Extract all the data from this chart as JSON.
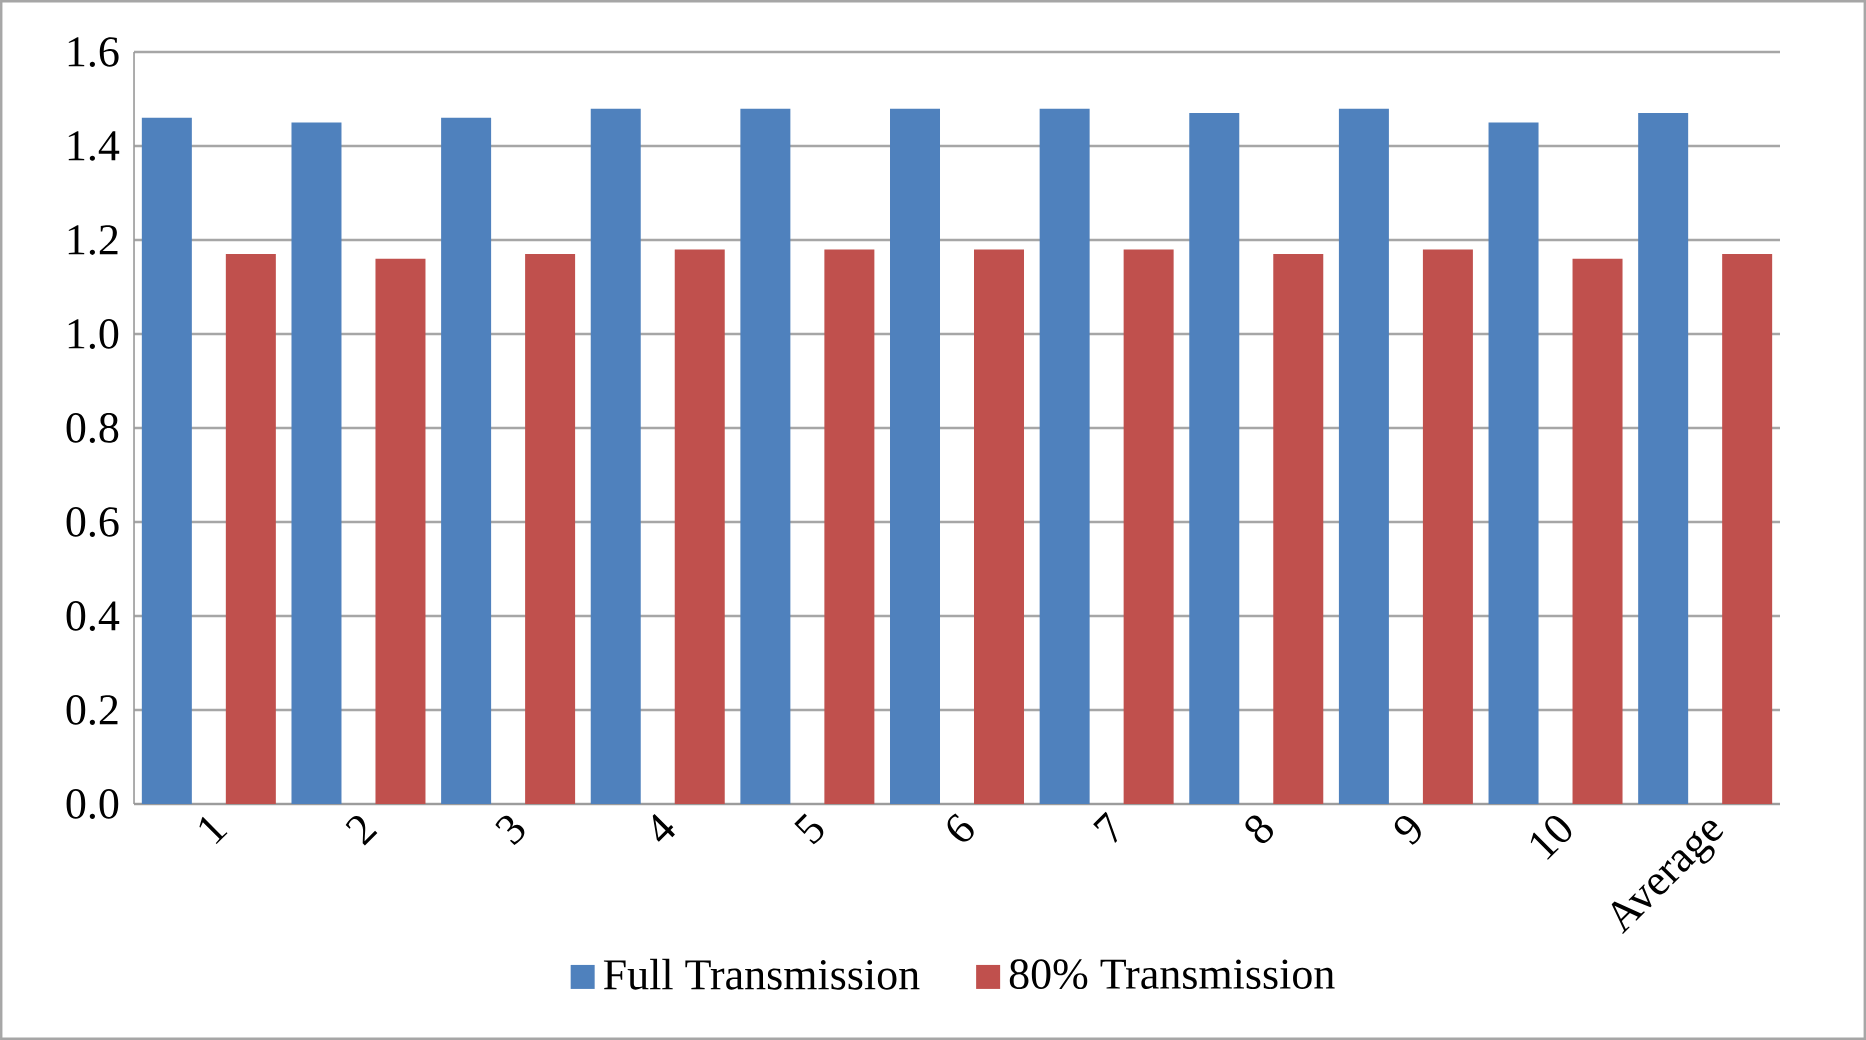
{
  "chart_data": {
    "type": "bar",
    "categories": [
      "1",
      "2",
      "3",
      "4",
      "5",
      "6",
      "7",
      "8",
      "9",
      "10",
      "Average"
    ],
    "series": [
      {
        "name": "Full Transmission",
        "color": "#4f81bd",
        "values": [
          1.46,
          1.45,
          1.46,
          1.48,
          1.48,
          1.48,
          1.48,
          1.47,
          1.48,
          1.45,
          1.47
        ]
      },
      {
        "name": "80% Transmission",
        "color": "#c0504d",
        "values": [
          1.17,
          1.16,
          1.17,
          1.18,
          1.18,
          1.18,
          1.18,
          1.17,
          1.18,
          1.16,
          1.17
        ]
      }
    ],
    "ylim": [
      0,
      1.6
    ],
    "yticks": [
      {
        "value": 0,
        "label": "0.0"
      },
      {
        "value": 0.2,
        "label": "0.2"
      },
      {
        "value": 0.4,
        "label": "0.4"
      },
      {
        "value": 0.6,
        "label": "0.6"
      },
      {
        "value": 0.8,
        "label": "0.8"
      },
      {
        "value": 1.0,
        "label": "1.0"
      },
      {
        "value": 1.2,
        "label": "1.2"
      },
      {
        "value": 1.4,
        "label": "1.4"
      },
      {
        "value": 1.6,
        "label": "1.6"
      }
    ],
    "grid": "y",
    "legend": "bottom"
  }
}
